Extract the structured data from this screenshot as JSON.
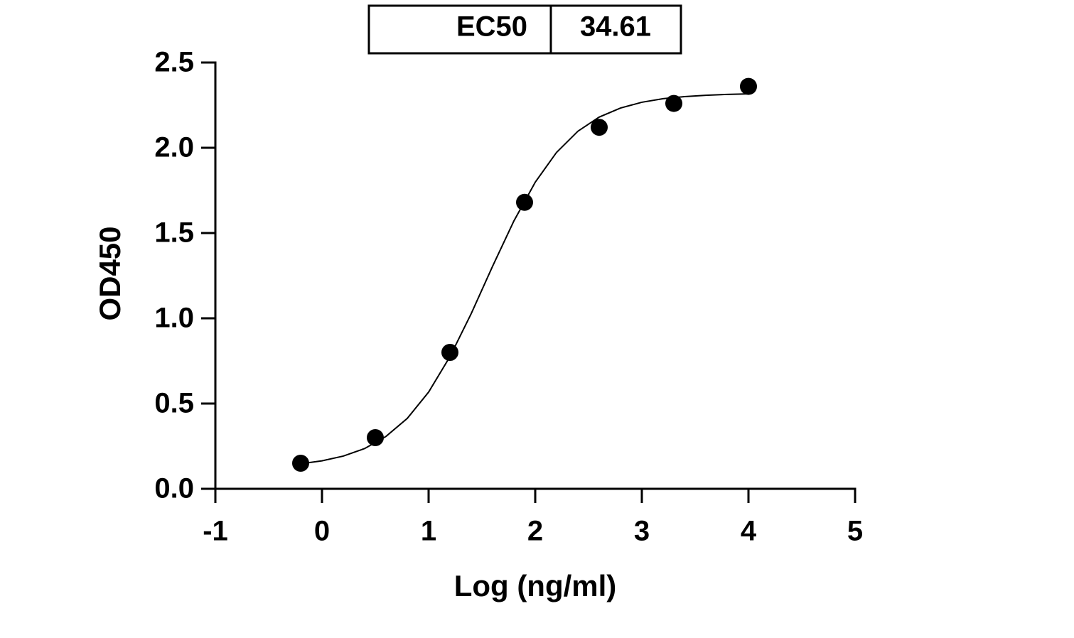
{
  "chart_data": {
    "type": "scatter",
    "xlabel": "Log (ng/ml)",
    "ylabel": "OD450",
    "ec50": {
      "label": "EC50",
      "value": 34.61
    },
    "x": [
      -0.2,
      0.5,
      1.2,
      1.9,
      2.6,
      3.3,
      4.0
    ],
    "values": [
      0.15,
      0.3,
      0.8,
      1.68,
      2.12,
      2.26,
      2.36
    ],
    "color": "#000000",
    "fit": {
      "x": [
        -0.2,
        0,
        0.2,
        0.4,
        0.6,
        0.8,
        1.0,
        1.2,
        1.4,
        1.6,
        1.8,
        2.0,
        2.2,
        2.4,
        2.6,
        2.8,
        3.0,
        3.2,
        3.4,
        3.6,
        3.8,
        4.0
      ],
      "values": [
        0.147,
        0.164,
        0.192,
        0.236,
        0.307,
        0.413,
        0.567,
        0.775,
        1.028,
        1.305,
        1.571,
        1.798,
        1.973,
        2.097,
        2.18,
        2.233,
        2.267,
        2.288,
        2.3,
        2.308,
        2.313,
        2.316
      ]
    },
    "xlim": [
      -1,
      5
    ],
    "xticks": [
      -1,
      0,
      1,
      2,
      3,
      4,
      5
    ],
    "ylim": [
      0,
      2.5
    ],
    "yticks": [
      {
        "value": 0,
        "label": "0.0"
      },
      {
        "value": 0.5,
        "label": "0.5"
      },
      {
        "value": 1,
        "label": "1.0"
      },
      {
        "value": 1.5,
        "label": "1.5"
      },
      {
        "value": 2,
        "label": "2.0"
      },
      {
        "value": 2.5,
        "label": "2.5"
      }
    ],
    "grid": false
  }
}
